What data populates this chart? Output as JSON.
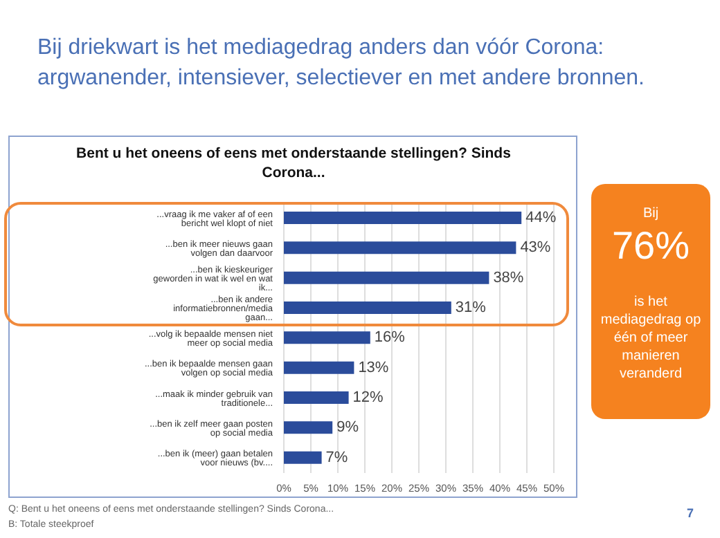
{
  "chart_data": {
    "type": "bar",
    "orientation": "horizontal",
    "title": "Bij driekwart is het mediagedrag anders dan vóór Corona: argwanender, intensiever, selectiever en met andere bronnen.",
    "subtitle": "Bent u het oneens of eens met onderstaande stellingen? Sinds Corona...",
    "categories": [
      "...vraag ik me vaker af of een bericht wel klopt of niet",
      "...ben ik meer nieuws gaan volgen dan daarvoor",
      "...ben ik kieskeuriger geworden in wat ik wel en wat ik...",
      "...ben ik andere informatiebronnen/media gaan...",
      "...volg ik bepaalde mensen niet meer op social media",
      "...ben ik bepaalde mensen gaan volgen op social media",
      "...maak ik minder gebruik van traditionele...",
      "...ben ik zelf meer gaan posten op social media",
      "...ben ik (meer) gaan betalen voor nieuws (bv...."
    ],
    "values": [
      44,
      43,
      38,
      31,
      16,
      13,
      12,
      9,
      7
    ],
    "value_labels": [
      "44%",
      "43%",
      "38%",
      "31%",
      "16%",
      "13%",
      "12%",
      "9%",
      "7%"
    ],
    "color": "#2b4c9b",
    "xlim": [
      0,
      50
    ],
    "xticks": [
      {
        "value": 0,
        "label": "0%"
      },
      {
        "value": 5,
        "label": "5%"
      },
      {
        "value": 10,
        "label": "10%"
      },
      {
        "value": 15,
        "label": "15%"
      },
      {
        "value": 20,
        "label": "20%"
      },
      {
        "value": 25,
        "label": "25%"
      },
      {
        "value": 30,
        "label": "30%"
      },
      {
        "value": 35,
        "label": "35%"
      },
      {
        "value": 40,
        "label": "40%"
      },
      {
        "value": 45,
        "label": "45%"
      },
      {
        "value": 50,
        "label": "50%"
      }
    ],
    "grid": "x",
    "legend": false,
    "annotations": [
      "Bij",
      "76%",
      "is het mediagedrag op één of meer manieren veranderd",
      "Q: Bent u het oneens of eens met onderstaande stellingen? Sinds Corona...",
      "B: Totale steekproef",
      "7"
    ]
  }
}
